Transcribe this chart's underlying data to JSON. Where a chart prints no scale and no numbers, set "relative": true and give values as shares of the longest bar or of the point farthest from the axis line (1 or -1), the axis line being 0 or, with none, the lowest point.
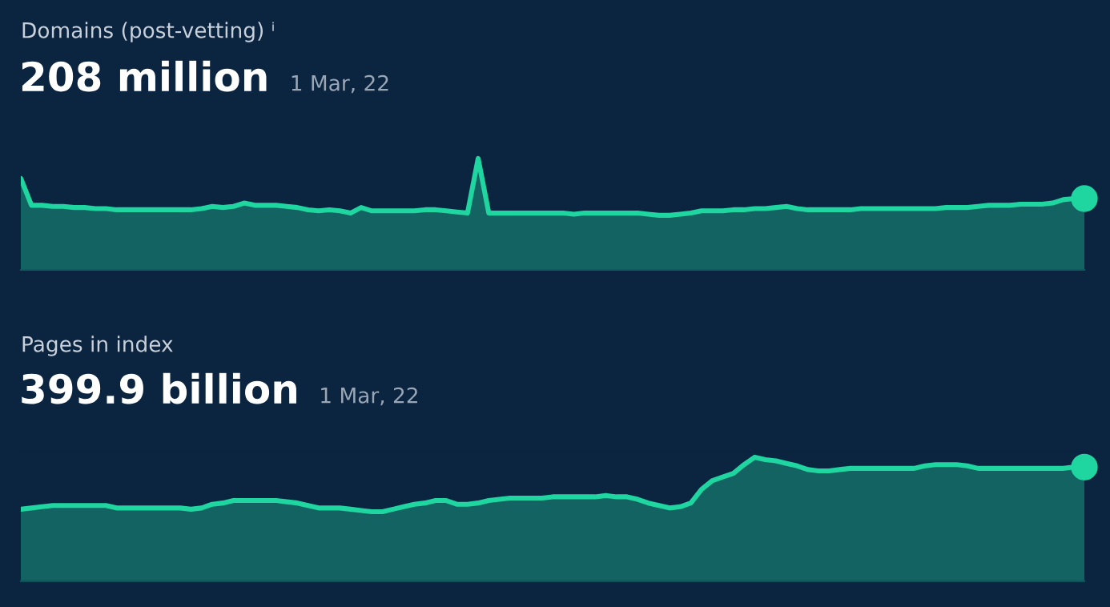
{
  "chart_data": [
    {
      "type": "area",
      "title": "Domains (post-vetting) ⁱ",
      "subtitle": "208 million",
      "annotations": [
        "1 Mar, 22"
      ],
      "relative": true,
      "categories": [
        null,
        null,
        null,
        null,
        null,
        null,
        null,
        null,
        null,
        null,
        null,
        null,
        null,
        null,
        null,
        null,
        null,
        null,
        null,
        null,
        null,
        null,
        null,
        null,
        null,
        null,
        null,
        null,
        null,
        null,
        null,
        null,
        null,
        null,
        null,
        null,
        null,
        null,
        null,
        null,
        null,
        null,
        null,
        null,
        null,
        null,
        null,
        null,
        null,
        null,
        null,
        null,
        null,
        null,
        null,
        null,
        null,
        null,
        null,
        null,
        null,
        null,
        null,
        null,
        null,
        null,
        null,
        null,
        null,
        null,
        null,
        null,
        null,
        null,
        null,
        null,
        null,
        null,
        null,
        null,
        null,
        null,
        null,
        null,
        null,
        null,
        null,
        null,
        null,
        null,
        null,
        null,
        null,
        null,
        null,
        null,
        null,
        null,
        null,
        null,
        null
      ],
      "series": [
        {
          "color": "#1fd6a0",
          "values": [
            0.82,
            0.58,
            0.58,
            0.57,
            0.57,
            0.56,
            0.56,
            0.55,
            0.55,
            0.54,
            0.54,
            0.54,
            0.54,
            0.54,
            0.54,
            0.54,
            0.54,
            0.55,
            0.57,
            0.56,
            0.57,
            0.6,
            0.58,
            0.58,
            0.58,
            0.57,
            0.56,
            0.54,
            0.53,
            0.54,
            0.53,
            0.51,
            0.56,
            0.53,
            0.53,
            0.53,
            0.53,
            0.53,
            0.54,
            0.54,
            0.53,
            0.52,
            0.51,
            1.0,
            0.51,
            0.51,
            0.51,
            0.51,
            0.51,
            0.51,
            0.51,
            0.51,
            0.5,
            0.51,
            0.51,
            0.51,
            0.51,
            0.51,
            0.51,
            0.5,
            0.49,
            0.49,
            0.5,
            0.51,
            0.53,
            0.53,
            0.53,
            0.54,
            0.54,
            0.55,
            0.55,
            0.56,
            0.57,
            0.55,
            0.54,
            0.54,
            0.54,
            0.54,
            0.54,
            0.55,
            0.55,
            0.55,
            0.55,
            0.55,
            0.55,
            0.55,
            0.55,
            0.56,
            0.56,
            0.56,
            0.57,
            0.58,
            0.58,
            0.58,
            0.59,
            0.59,
            0.59,
            0.6,
            0.63,
            0.64,
            0.64
          ]
        }
      ]
    },
    {
      "type": "area",
      "title": "Pages in index",
      "subtitle": "399.9 billion",
      "annotations": [
        "1 Mar, 22"
      ],
      "relative": true,
      "categories": [
        null,
        null,
        null,
        null,
        null,
        null,
        null,
        null,
        null,
        null,
        null,
        null,
        null,
        null,
        null,
        null,
        null,
        null,
        null,
        null,
        null,
        null,
        null,
        null,
        null,
        null,
        null,
        null,
        null,
        null,
        null,
        null,
        null,
        null,
        null,
        null,
        null,
        null,
        null,
        null,
        null,
        null,
        null,
        null,
        null,
        null,
        null,
        null,
        null,
        null,
        null,
        null,
        null,
        null,
        null,
        null,
        null,
        null,
        null,
        null,
        null,
        null,
        null,
        null,
        null,
        null,
        null,
        null,
        null,
        null,
        null,
        null,
        null,
        null,
        null,
        null,
        null,
        null,
        null,
        null,
        null,
        null,
        null,
        null,
        null,
        null,
        null,
        null,
        null,
        null,
        null,
        null,
        null,
        null,
        null,
        null,
        null,
        null,
        null,
        null,
        null
      ],
      "series": [
        {
          "color": "#1fd6a0",
          "values": [
            0.58,
            0.59,
            0.6,
            0.61,
            0.61,
            0.61,
            0.61,
            0.61,
            0.61,
            0.59,
            0.59,
            0.59,
            0.59,
            0.59,
            0.59,
            0.59,
            0.58,
            0.59,
            0.62,
            0.63,
            0.65,
            0.65,
            0.65,
            0.65,
            0.65,
            0.64,
            0.63,
            0.61,
            0.59,
            0.59,
            0.59,
            0.58,
            0.57,
            0.56,
            0.56,
            0.58,
            0.6,
            0.62,
            0.63,
            0.65,
            0.65,
            0.62,
            0.62,
            0.63,
            0.65,
            0.66,
            0.67,
            0.67,
            0.67,
            0.67,
            0.68,
            0.68,
            0.68,
            0.68,
            0.68,
            0.69,
            0.68,
            0.68,
            0.66,
            0.63,
            0.61,
            0.59,
            0.6,
            0.63,
            0.74,
            0.81,
            0.84,
            0.87,
            0.94,
            1.0,
            0.98,
            0.97,
            0.95,
            0.93,
            0.9,
            0.89,
            0.89,
            0.9,
            0.91,
            0.91,
            0.91,
            0.91,
            0.91,
            0.91,
            0.91,
            0.93,
            0.94,
            0.94,
            0.94,
            0.93,
            0.91,
            0.91,
            0.91,
            0.91,
            0.91,
            0.91,
            0.91,
            0.91,
            0.91,
            0.92,
            0.92
          ]
        }
      ]
    }
  ]
}
